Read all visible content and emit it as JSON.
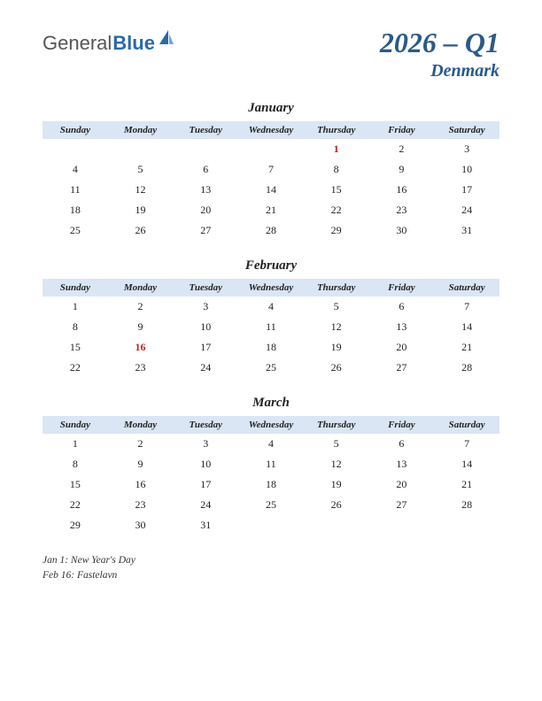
{
  "logo": {
    "text1": "General",
    "text2": "Blue"
  },
  "title": {
    "quarter": "2026 – Q1",
    "country": "Denmark"
  },
  "day_headers": [
    "Sunday",
    "Monday",
    "Tuesday",
    "Wednesday",
    "Thursday",
    "Friday",
    "Saturday"
  ],
  "colors": {
    "header_bg": "#dae6f4",
    "title_color": "#2a5a8a",
    "holiday_color": "#c02020",
    "text_color": "#222222",
    "background": "#ffffff"
  },
  "typography": {
    "title_fontsize": 32,
    "country_fontsize": 20,
    "month_fontsize": 15,
    "dayheader_fontsize": 11,
    "cell_fontsize": 12,
    "holiday_list_fontsize": 11.5,
    "font_family": "Georgia, serif",
    "italic": true
  },
  "months": [
    {
      "name": "January",
      "weeks": [
        [
          "",
          "",
          "",
          "",
          "1",
          "2",
          "3"
        ],
        [
          "4",
          "5",
          "6",
          "7",
          "8",
          "9",
          "10"
        ],
        [
          "11",
          "12",
          "13",
          "14",
          "15",
          "16",
          "17"
        ],
        [
          "18",
          "19",
          "20",
          "21",
          "22",
          "23",
          "24"
        ],
        [
          "25",
          "26",
          "27",
          "28",
          "29",
          "30",
          "31"
        ]
      ],
      "holidays": [
        "1"
      ]
    },
    {
      "name": "February",
      "weeks": [
        [
          "1",
          "2",
          "3",
          "4",
          "5",
          "6",
          "7"
        ],
        [
          "8",
          "9",
          "10",
          "11",
          "12",
          "13",
          "14"
        ],
        [
          "15",
          "16",
          "17",
          "18",
          "19",
          "20",
          "21"
        ],
        [
          "22",
          "23",
          "24",
          "25",
          "26",
          "27",
          "28"
        ]
      ],
      "holidays": [
        "16"
      ]
    },
    {
      "name": "March",
      "weeks": [
        [
          "1",
          "2",
          "3",
          "4",
          "5",
          "6",
          "7"
        ],
        [
          "8",
          "9",
          "10",
          "11",
          "12",
          "13",
          "14"
        ],
        [
          "15",
          "16",
          "17",
          "18",
          "19",
          "20",
          "21"
        ],
        [
          "22",
          "23",
          "24",
          "25",
          "26",
          "27",
          "28"
        ],
        [
          "29",
          "30",
          "31",
          "",
          "",
          "",
          ""
        ]
      ],
      "holidays": []
    }
  ],
  "holiday_list": [
    "Jan 1: New Year's Day",
    "Feb 16: Fastelavn"
  ]
}
